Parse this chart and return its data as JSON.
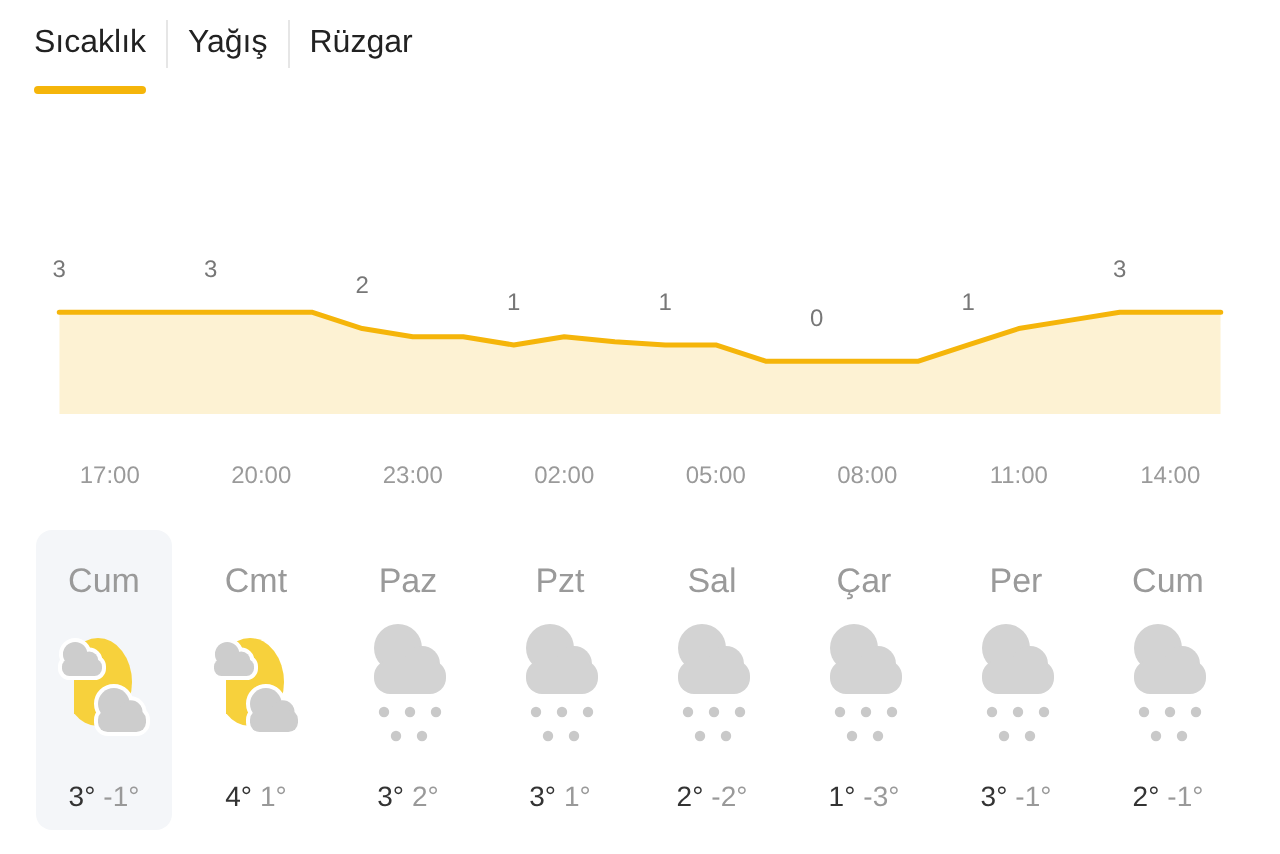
{
  "chart_data": [
    {
      "type": "area",
      "title": "Sıcaklık",
      "annotations": [
        "Yağış",
        "Rüzgar"
      ],
      "categories": [
        null,
        "17:00",
        null,
        null,
        "20:00",
        null,
        null,
        "23:00",
        null,
        null,
        "02:00",
        null,
        null,
        "05:00",
        null,
        null,
        "08:00",
        null,
        null,
        "11:00",
        null,
        null,
        "14:00",
        null
      ],
      "series": [
        {
          "color": "#f5b50a",
          "values": [
            3,
            3,
            3,
            3,
            3,
            3,
            2,
            1.5,
            1.5,
            1,
            1.5,
            1.2,
            1,
            1,
            0,
            0,
            0,
            0,
            1,
            2,
            2.5,
            3,
            3,
            3
          ],
          "value_labels": [
            "3",
            null,
            null,
            "3",
            null,
            null,
            "2",
            null,
            null,
            "1",
            null,
            null,
            "1",
            null,
            null,
            "0",
            null,
            null,
            "1",
            null,
            null,
            "3",
            null,
            null
          ]
        }
      ]
    },
    {
      "type": "other",
      "categories": [
        "Cum",
        "Cmt",
        "Paz",
        "Pzt",
        "Sal",
        "Çar",
        "Per",
        "Cum"
      ],
      "annotations": [
        "3°",
        "-1°",
        "4°",
        "1°",
        "3°",
        "2°",
        "3°",
        "1°",
        "2°",
        "-2°",
        "1°",
        "-3°",
        "3°",
        "-1°",
        "2°",
        "-1°"
      ]
    }
  ]
}
